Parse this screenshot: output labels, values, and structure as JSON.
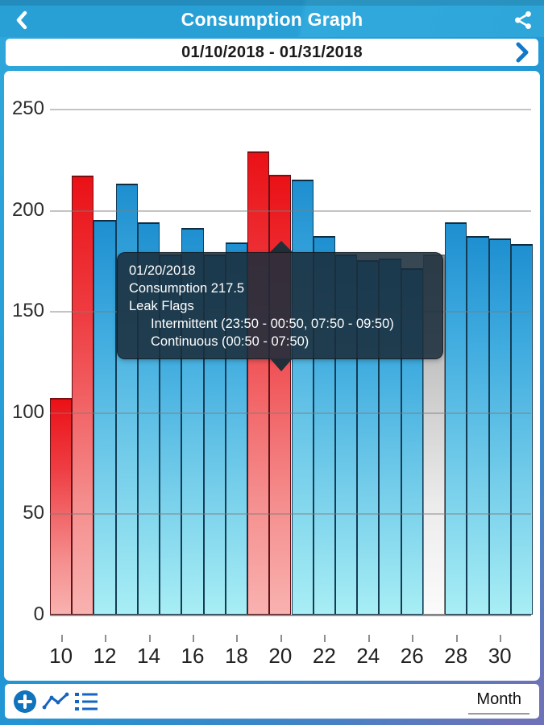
{
  "header": {
    "title": "Consumption Graph",
    "back_icon": "chevron-left",
    "share_icon": "share"
  },
  "date_bar": {
    "range": "01/10/2018 - 01/31/2018",
    "next_icon": "chevron-right"
  },
  "tooltip": {
    "date": "01/20/2018",
    "consumption_line": "Consumption 217.5",
    "leak_flags_label": "Leak Flags",
    "flags": [
      "Intermittent (23:50 - 00:50, 07:50 - 09:50)",
      "Continuous (00:50 - 07:50)"
    ]
  },
  "toolbar": {
    "add_icon": "plus-circle",
    "line_view_icon": "trend-line",
    "list_view_icon": "list",
    "period_label": "Month"
  },
  "colors": {
    "header_bg": "#2ba4d9",
    "page_gradient_end": "#6d72b8",
    "accent_blue": "#1073bc",
    "bar_blue": "#2f9fd8",
    "bar_red": "#ec1416",
    "bar_no_data": "#bdbdbd",
    "tooltip_bg": "rgba(27,45,59,0.88)"
  },
  "chart_data": {
    "type": "bar",
    "title": "Consumption Graph",
    "xlabel": "",
    "ylabel": "",
    "x": [
      10,
      11,
      12,
      13,
      14,
      15,
      16,
      17,
      18,
      19,
      20,
      21,
      22,
      23,
      24,
      25,
      26,
      27,
      28,
      29,
      30,
      31
    ],
    "values": [
      107,
      217,
      195,
      213,
      194,
      178,
      191,
      178,
      184,
      229,
      217.5,
      215,
      187,
      178,
      175,
      176,
      171,
      178,
      194,
      187,
      186,
      183
    ],
    "bar_styles": [
      "red",
      "red",
      "blue",
      "blue",
      "blue",
      "blue",
      "blue",
      "blue",
      "blue",
      "red",
      "red",
      "blue",
      "blue",
      "blue",
      "blue",
      "blue",
      "blue",
      "white",
      "blue",
      "blue",
      "blue",
      "blue"
    ],
    "selected_x": 20,
    "selected_value": 217.5,
    "ylim": [
      0,
      250
    ],
    "yticks": [
      0,
      50,
      100,
      150,
      200,
      250
    ],
    "xtick_labels": [
      10,
      12,
      14,
      16,
      18,
      20,
      22,
      24,
      26,
      28,
      30
    ],
    "grid": "horizontal",
    "legend": "none"
  }
}
